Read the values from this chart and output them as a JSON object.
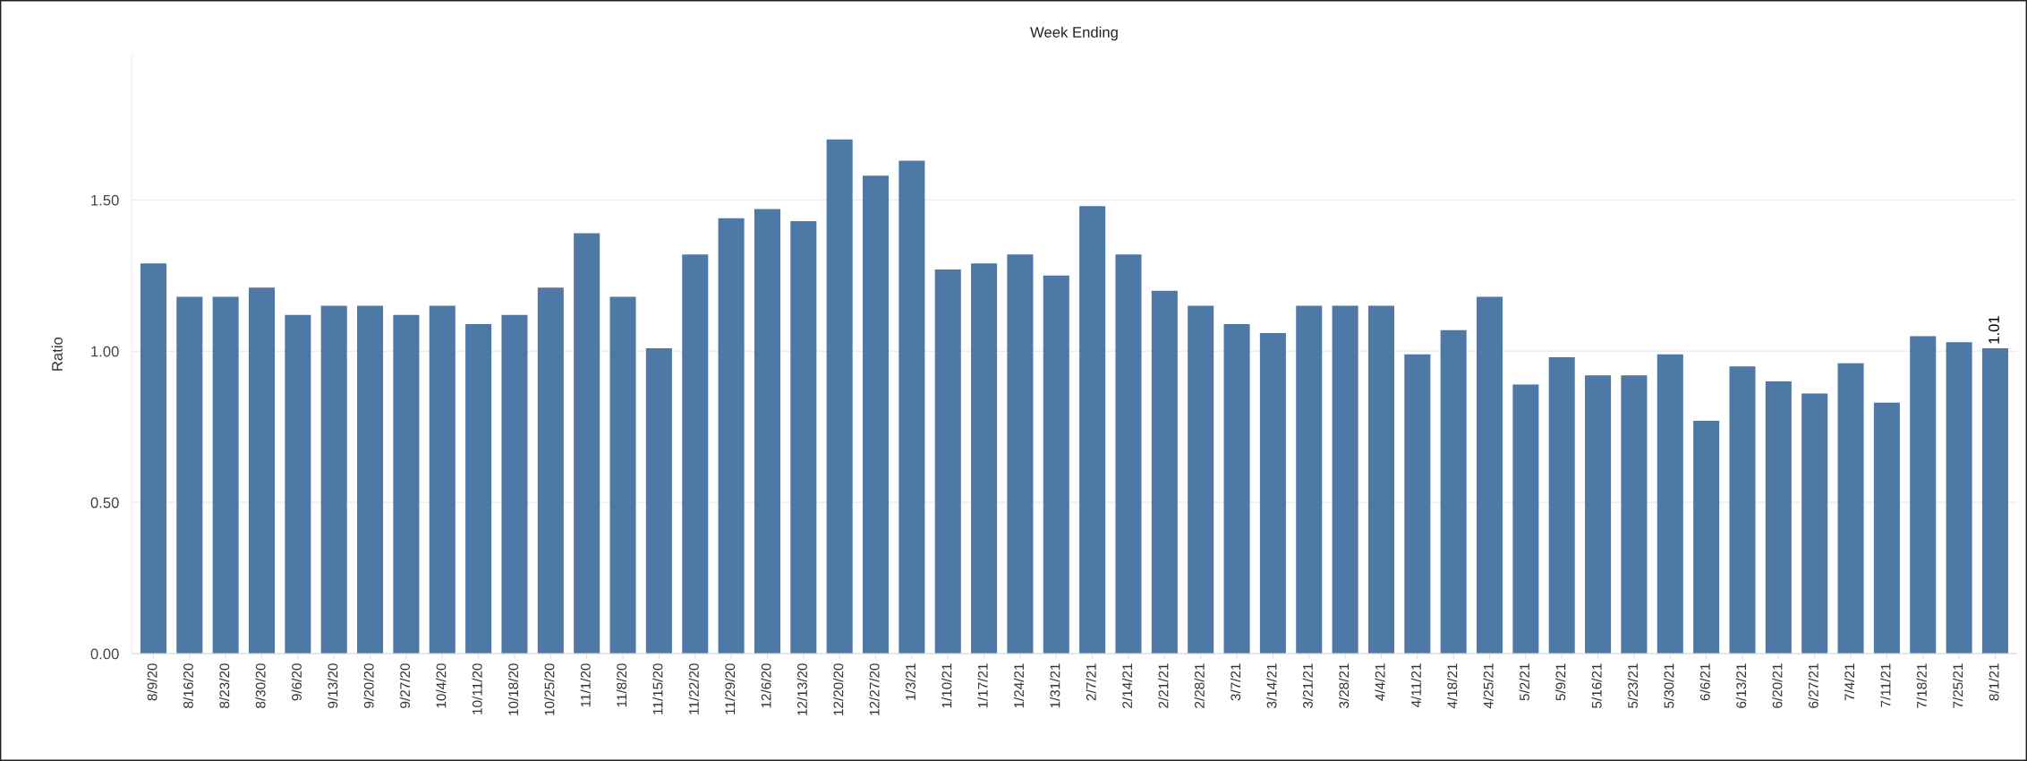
{
  "chart_data": {
    "type": "bar",
    "title": "Week Ending",
    "ylabel": "Ratio",
    "categories": [
      "8/9/20",
      "8/16/20",
      "8/23/20",
      "8/30/20",
      "9/6/20",
      "9/13/20",
      "9/20/20",
      "9/27/20",
      "10/4/20",
      "10/11/20",
      "10/18/20",
      "10/25/20",
      "11/1/20",
      "11/8/20",
      "11/15/20",
      "11/22/20",
      "11/29/20",
      "12/6/20",
      "12/13/20",
      "12/20/20",
      "12/27/20",
      "1/3/21",
      "1/10/21",
      "1/17/21",
      "1/24/21",
      "1/31/21",
      "2/7/21",
      "2/14/21",
      "2/21/21",
      "2/28/21",
      "3/7/21",
      "3/14/21",
      "3/21/21",
      "3/28/21",
      "4/4/21",
      "4/11/21",
      "4/18/21",
      "4/25/21",
      "5/2/21",
      "5/9/21",
      "5/16/21",
      "5/23/21",
      "5/30/21",
      "6/6/21",
      "6/13/21",
      "6/20/21",
      "6/27/21",
      "7/4/21",
      "7/11/21",
      "7/18/21",
      "7/25/21",
      "8/1/21"
    ],
    "values": [
      1.29,
      1.18,
      1.18,
      1.21,
      1.12,
      1.15,
      1.15,
      1.12,
      1.15,
      1.09,
      1.12,
      1.21,
      1.39,
      1.18,
      1.01,
      1.32,
      1.44,
      1.47,
      1.43,
      1.7,
      1.58,
      1.63,
      1.27,
      1.29,
      1.32,
      1.25,
      1.48,
      1.32,
      1.2,
      1.15,
      1.09,
      1.06,
      1.15,
      1.15,
      1.15,
      0.99,
      1.07,
      1.18,
      0.89,
      0.98,
      0.92,
      0.92,
      0.99,
      0.77,
      0.95,
      0.9,
      0.86,
      0.96,
      0.83,
      1.05,
      1.03,
      1.01
    ],
    "value_labels": [
      null,
      null,
      null,
      null,
      null,
      null,
      null,
      null,
      null,
      null,
      null,
      null,
      null,
      null,
      null,
      null,
      null,
      null,
      null,
      null,
      null,
      null,
      null,
      null,
      null,
      null,
      null,
      null,
      null,
      null,
      null,
      null,
      null,
      null,
      null,
      null,
      null,
      null,
      null,
      null,
      null,
      null,
      null,
      null,
      null,
      null,
      null,
      null,
      null,
      null,
      null,
      "1.01"
    ],
    "color": "#4e79a7",
    "ylim": [
      0,
      1.98
    ],
    "yticks": [
      {
        "value": 0,
        "label": "0.00"
      },
      {
        "value": 0.5,
        "label": "0.50"
      },
      {
        "value": 1,
        "label": "1.00"
      },
      {
        "value": 1.5,
        "label": "1.50"
      }
    ],
    "grid": "y"
  }
}
